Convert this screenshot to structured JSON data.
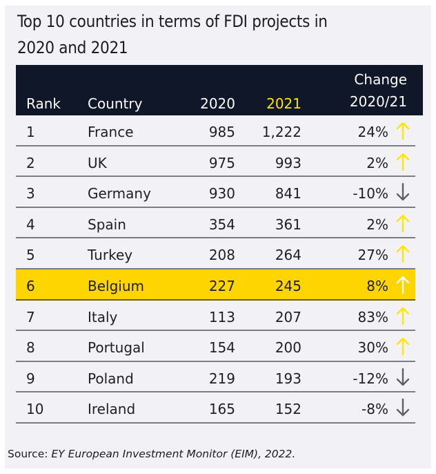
{
  "title": {
    "line1": "Top 10 countries in terms of FDI projects in",
    "line2": "2020 and 2021"
  },
  "colors": {
    "header_bg": "#0f1729",
    "highlight_2021_header": "#ffe600",
    "highlight_row": "#ffd500",
    "arrow_up": "#ffe600",
    "arrow_down": "#5f5f66",
    "arrow_up_on_highlight": "#ffffff"
  },
  "table": {
    "headers": {
      "rank": "Rank",
      "country": "Country",
      "y2020": "2020",
      "y2021": "2021",
      "change_line1": "Change",
      "change_line2": "2020/21"
    },
    "rows": [
      {
        "rank": "1",
        "country": "France",
        "y2020": "985",
        "y2021": "1,222",
        "change": "24%",
        "direction": "up",
        "highlight": false
      },
      {
        "rank": "2",
        "country": "UK",
        "y2020": "975",
        "y2021": "993",
        "change": "2%",
        "direction": "up",
        "highlight": false
      },
      {
        "rank": "3",
        "country": "Germany",
        "y2020": "930",
        "y2021": "841",
        "change": "-10%",
        "direction": "down",
        "highlight": false
      },
      {
        "rank": "4",
        "country": "Spain",
        "y2020": "354",
        "y2021": "361",
        "change": "2%",
        "direction": "up",
        "highlight": false
      },
      {
        "rank": "5",
        "country": "Turkey",
        "y2020": "208",
        "y2021": "264",
        "change": "27%",
        "direction": "up",
        "highlight": false
      },
      {
        "rank": "6",
        "country": "Belgium",
        "y2020": "227",
        "y2021": "245",
        "change": "8%",
        "direction": "up",
        "highlight": true
      },
      {
        "rank": "7",
        "country": "Italy",
        "y2020": "113",
        "y2021": "207",
        "change": "83%",
        "direction": "up",
        "highlight": false
      },
      {
        "rank": "8",
        "country": "Portugal",
        "y2020": "154",
        "y2021": "200",
        "change": "30%",
        "direction": "up",
        "highlight": false
      },
      {
        "rank": "9",
        "country": "Poland",
        "y2020": "219",
        "y2021": "193",
        "change": "-12%",
        "direction": "down",
        "highlight": false
      },
      {
        "rank": "10",
        "country": "Ireland",
        "y2020": "165",
        "y2021": "152",
        "change": "-8%",
        "direction": "down",
        "highlight": false
      }
    ]
  },
  "source": {
    "label": "Source: ",
    "text": "EY European Investment Monitor (EIM), 2022."
  }
}
